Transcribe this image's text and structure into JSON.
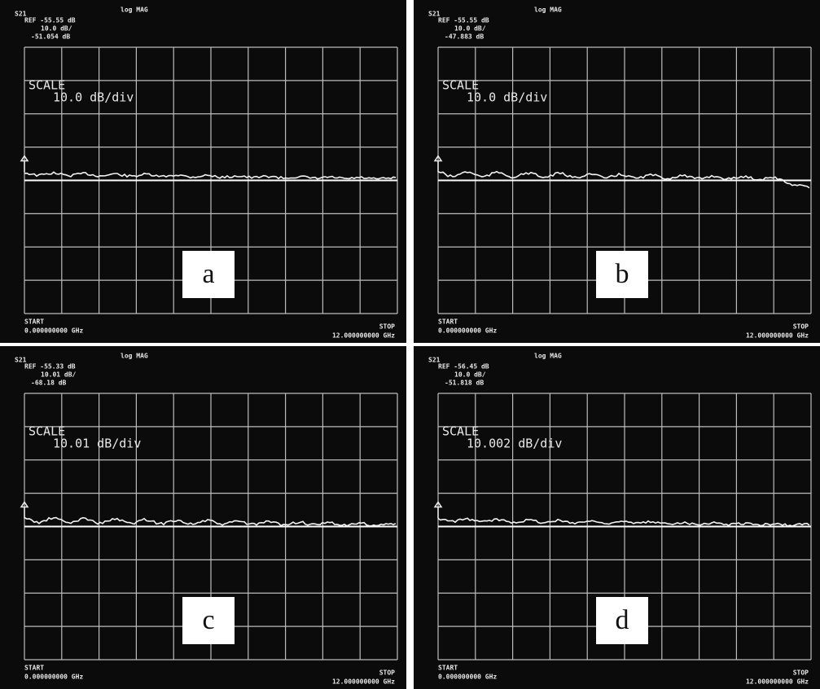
{
  "panels": [
    {
      "label": "a",
      "channel": "S21",
      "format": "log MAG",
      "ref": "REF -55.55 dB",
      "div": "10.0 dB/",
      "marker": "-51.054 dB",
      "scale_title": "SCALE",
      "scale": "10.0 dB/div",
      "start_title": "START",
      "start": "0.000000000 GHz",
      "stop_title": "STOP",
      "stop": "12.000000000 GHz"
    },
    {
      "label": "b",
      "channel": "S21",
      "format": "log MAG",
      "ref": "REF -55.55 dB",
      "div": "10.0 dB/",
      "marker": "-47.883 dB",
      "scale_title": "SCALE",
      "scale": "10.0 dB/div",
      "start_title": "START",
      "start": "0.000000000 GHz",
      "stop_title": "STOP",
      "stop": "12.000000000 GHz"
    },
    {
      "label": "c",
      "channel": "S21",
      "format": "log MAG",
      "ref": "REF -55.33 dB",
      "div": "10.01 dB/",
      "marker": "-68.18 dB",
      "scale_title": "SCALE",
      "scale": "10.01 dB/div",
      "start_title": "START",
      "start": "0.000000000 GHz",
      "stop_title": "STOP",
      "stop": "12.000000000 GHz"
    },
    {
      "label": "d",
      "channel": "S21",
      "format": "log MAG",
      "ref": "REF -56.45 dB",
      "div": "10.0 dB/",
      "marker": "-51.818 dB",
      "scale_title": "SCALE",
      "scale": "10.002 dB/div",
      "start_title": "START",
      "start": "0.000000000 GHz",
      "stop_title": "STOP",
      "stop": "12.000000000 GHz"
    }
  ]
}
